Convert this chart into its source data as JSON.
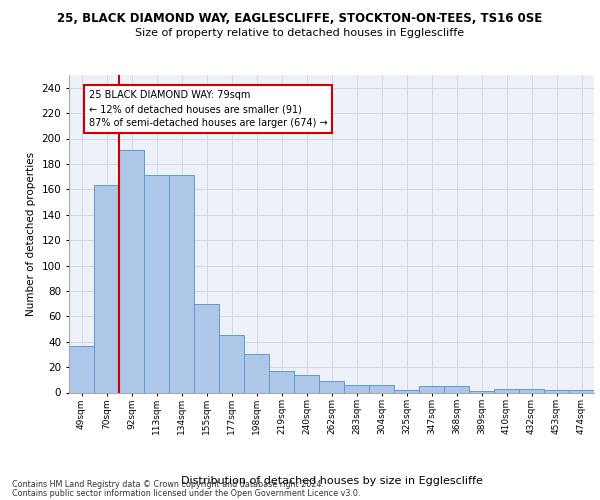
{
  "title_line1": "25, BLACK DIAMOND WAY, EAGLESCLIFFE, STOCKTON-ON-TEES, TS16 0SE",
  "title_line2": "Size of property relative to detached houses in Egglescliffe",
  "xlabel": "Distribution of detached houses by size in Egglescliffe",
  "ylabel": "Number of detached properties",
  "categories": [
    "49sqm",
    "70sqm",
    "92sqm",
    "113sqm",
    "134sqm",
    "155sqm",
    "177sqm",
    "198sqm",
    "219sqm",
    "240sqm",
    "262sqm",
    "283sqm",
    "304sqm",
    "325sqm",
    "347sqm",
    "368sqm",
    "389sqm",
    "410sqm",
    "432sqm",
    "453sqm",
    "474sqm"
  ],
  "values": [
    37,
    163,
    191,
    171,
    171,
    70,
    45,
    30,
    17,
    14,
    9,
    6,
    6,
    2,
    5,
    5,
    1,
    3,
    3,
    2,
    2
  ],
  "bar_color": "#aec6e8",
  "bar_edge_color": "#5b9bd5",
  "vline_x": 1.5,
  "vline_color": "#cc0000",
  "annotation_text": "25 BLACK DIAMOND WAY: 79sqm\n← 12% of detached houses are smaller (91)\n87% of semi-detached houses are larger (674) →",
  "annotation_box_color": "#ffffff",
  "annotation_box_edge": "#cc0000",
  "ylim": [
    0,
    250
  ],
  "yticks": [
    0,
    20,
    40,
    60,
    80,
    100,
    120,
    140,
    160,
    180,
    200,
    220,
    240
  ],
  "grid_color": "#d0d8e8",
  "background_color": "#eef2f8",
  "footer_line1": "Contains HM Land Registry data © Crown copyright and database right 2024.",
  "footer_line2": "Contains public sector information licensed under the Open Government Licence v3.0."
}
